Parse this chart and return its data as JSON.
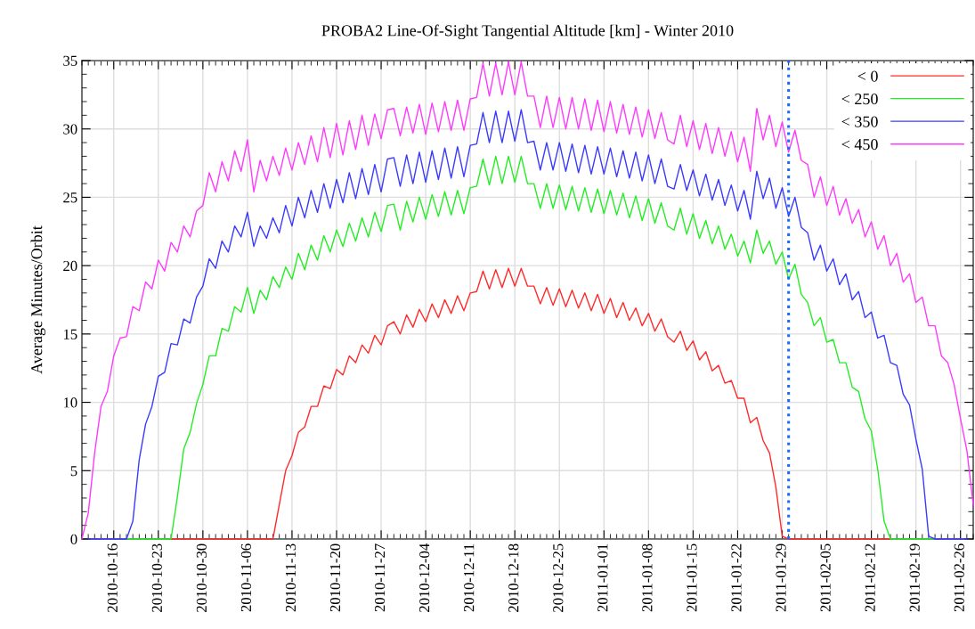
{
  "chart_data": {
    "type": "line",
    "title": "PROBA2 Line-Of-Sight Tangential Altitude [km] - Winter 2010",
    "ylabel": "Average Minutes/Orbit",
    "x": [
      "2010-10-11",
      "2010-10-12",
      "2010-10-13",
      "2010-10-14",
      "2010-10-15",
      "2010-10-16",
      "2010-10-17",
      "2010-10-18",
      "2010-10-19",
      "2010-10-20",
      "2010-10-21",
      "2010-10-22",
      "2010-10-23",
      "2010-10-24",
      "2010-10-25",
      "2010-10-26",
      "2010-10-27",
      "2010-10-28",
      "2010-10-29",
      "2010-10-30",
      "2010-10-31",
      "2010-11-01",
      "2010-11-02",
      "2010-11-03",
      "2010-11-04",
      "2010-11-05",
      "2010-11-06",
      "2010-11-07",
      "2010-11-08",
      "2010-11-09",
      "2010-11-10",
      "2010-11-11",
      "2010-11-12",
      "2010-11-13",
      "2010-11-14",
      "2010-11-15",
      "2010-11-16",
      "2010-11-17",
      "2010-11-18",
      "2010-11-19",
      "2010-11-20",
      "2010-11-21",
      "2010-11-22",
      "2010-11-23",
      "2010-11-24",
      "2010-11-25",
      "2010-11-26",
      "2010-11-27",
      "2010-11-28",
      "2010-11-29",
      "2010-11-30",
      "2010-12-01",
      "2010-12-02",
      "2010-12-03",
      "2010-12-04",
      "2010-12-05",
      "2010-12-06",
      "2010-12-07",
      "2010-12-08",
      "2010-12-09",
      "2010-12-10",
      "2010-12-11",
      "2010-12-12",
      "2010-12-13",
      "2010-12-14",
      "2010-12-15",
      "2010-12-16",
      "2010-12-17",
      "2010-12-18",
      "2010-12-19",
      "2010-12-20",
      "2010-12-21",
      "2010-12-22",
      "2010-12-23",
      "2010-12-24",
      "2010-12-25",
      "2010-12-26",
      "2010-12-27",
      "2010-12-28",
      "2010-12-29",
      "2010-12-30",
      "2010-12-31",
      "2011-01-01",
      "2011-01-02",
      "2011-01-03",
      "2011-01-04",
      "2011-01-05",
      "2011-01-06",
      "2011-01-07",
      "2011-01-08",
      "2011-01-09",
      "2011-01-10",
      "2011-01-11",
      "2011-01-12",
      "2011-01-13",
      "2011-01-14",
      "2011-01-15",
      "2011-01-16",
      "2011-01-17",
      "2011-01-18",
      "2011-01-19",
      "2011-01-20",
      "2011-01-21",
      "2011-01-22",
      "2011-01-23",
      "2011-01-24",
      "2011-01-25",
      "2011-01-26",
      "2011-01-27",
      "2011-01-28",
      "2011-01-29",
      "2011-01-30",
      "2011-01-31",
      "2011-02-01",
      "2011-02-02",
      "2011-02-03",
      "2011-02-04",
      "2011-02-05",
      "2011-02-06",
      "2011-02-07",
      "2011-02-08",
      "2011-02-09",
      "2011-02-10",
      "2011-02-11",
      "2011-02-12",
      "2011-02-13",
      "2011-02-14",
      "2011-02-15",
      "2011-02-16",
      "2011-02-17",
      "2011-02-18",
      "2011-02-19",
      "2011-02-20",
      "2011-02-21",
      "2011-02-22",
      "2011-02-23",
      "2011-02-24",
      "2011-02-25",
      "2011-02-26",
      "2011-02-27",
      "2011-02-28"
    ],
    "series": [
      {
        "name": "< 0",
        "color": "#ff2a2a",
        "values": [
          null,
          null,
          null,
          null,
          null,
          null,
          null,
          null,
          null,
          null,
          null,
          null,
          null,
          null,
          0,
          0,
          0,
          0,
          0,
          0,
          0,
          0,
          0,
          0,
          0,
          0,
          0,
          0,
          0,
          0,
          0,
          2.5,
          5.0,
          6.1,
          7.8,
          8.2,
          9.7,
          9.7,
          11.2,
          11.0,
          12.4,
          12.0,
          13.4,
          12.9,
          14.2,
          13.6,
          14.9,
          14.2,
          15.6,
          15.9,
          15.0,
          16.4,
          15.5,
          16.8,
          15.9,
          17.2,
          16.2,
          17.5,
          16.5,
          17.8,
          16.7,
          18.0,
          18.1,
          19.6,
          18.3,
          19.7,
          18.4,
          19.8,
          18.5,
          19.8,
          18.5,
          18.5,
          17.2,
          18.4,
          17.1,
          18.3,
          17.0,
          18.2,
          16.9,
          18.0,
          16.7,
          17.9,
          16.5,
          17.6,
          16.2,
          17.3,
          16.0,
          16.9,
          15.6,
          16.5,
          15.2,
          16.1,
          14.8,
          14.4,
          15.2,
          13.8,
          14.5,
          13.1,
          13.7,
          12.3,
          12.7,
          11.4,
          11.6,
          10.3,
          10.3,
          8.5,
          8.9,
          7.2,
          6.3,
          3.8,
          0.2,
          0,
          0,
          0,
          0,
          0,
          0,
          0,
          0,
          0,
          0,
          0,
          0,
          0,
          0,
          0,
          0,
          0,
          null,
          null,
          null,
          null,
          null,
          null,
          null,
          null,
          null,
          null,
          null,
          null,
          null
        ]
      },
      {
        "name": "< 250",
        "color": "#22ee22",
        "values": [
          null,
          null,
          null,
          null,
          null,
          null,
          null,
          0,
          0,
          0,
          0,
          0,
          0,
          0,
          0,
          3.1,
          6.6,
          7.8,
          9.9,
          11.3,
          13.4,
          13.4,
          15.4,
          15.2,
          17.0,
          16.6,
          18.4,
          16.5,
          18.2,
          17.5,
          19.2,
          18.4,
          19.9,
          19.0,
          20.9,
          19.7,
          21.5,
          20.4,
          22.2,
          21.0,
          22.6,
          21.4,
          23.1,
          21.8,
          23.5,
          22.1,
          23.9,
          22.5,
          24.4,
          24.5,
          22.6,
          24.7,
          23.2,
          25.0,
          23.4,
          25.2,
          23.6,
          25.4,
          23.7,
          25.5,
          23.8,
          25.7,
          25.8,
          27.8,
          25.9,
          28.0,
          26.0,
          28.0,
          26.1,
          28.0,
          26.0,
          26.0,
          24.2,
          26.0,
          24.2,
          25.9,
          24.1,
          25.8,
          24.0,
          25.7,
          23.9,
          25.6,
          23.8,
          25.5,
          23.7,
          25.3,
          23.5,
          25.1,
          23.3,
          24.9,
          23.1,
          24.6,
          22.9,
          22.6,
          24.2,
          22.3,
          23.8,
          22.0,
          23.3,
          21.6,
          22.9,
          21.2,
          22.3,
          20.7,
          21.8,
          20.2,
          22.6,
          20.9,
          21.8,
          20.1,
          21.0,
          19.0,
          20.1,
          17.9,
          17.3,
          15.6,
          16.2,
          14.4,
          14.6,
          12.9,
          12.9,
          11.1,
          10.8,
          8.8,
          7.9,
          5.1,
          1.3,
          0,
          0,
          0,
          0,
          0,
          0,
          0,
          0,
          null,
          null,
          null,
          null,
          null,
          null
        ]
      },
      {
        "name": "< 350",
        "color": "#3a3aff",
        "values": [
          null,
          0,
          0,
          0,
          0,
          0,
          0,
          0,
          1.3,
          5.8,
          8.4,
          9.7,
          11.9,
          12.2,
          14.3,
          14.2,
          16.1,
          15.8,
          17.7,
          18.5,
          20.5,
          19.8,
          21.8,
          21.0,
          22.9,
          22.1,
          23.9,
          21.4,
          22.9,
          22.0,
          23.5,
          22.4,
          24.4,
          22.9,
          25.0,
          23.5,
          25.5,
          23.9,
          26.0,
          24.2,
          26.3,
          24.6,
          26.8,
          24.9,
          27.1,
          25.2,
          27.4,
          25.4,
          27.8,
          27.9,
          25.8,
          28.1,
          26.0,
          28.3,
          26.1,
          28.4,
          26.3,
          28.6,
          26.4,
          28.7,
          26.5,
          28.8,
          28.9,
          31.2,
          29.0,
          31.3,
          29.0,
          31.3,
          29.1,
          31.4,
          29.0,
          29.1,
          27.0,
          29.0,
          27.0,
          29.0,
          26.9,
          28.9,
          26.8,
          28.8,
          26.7,
          28.7,
          26.7,
          28.6,
          26.5,
          28.4,
          26.4,
          28.3,
          26.2,
          28.1,
          26.0,
          27.8,
          25.8,
          25.6,
          27.4,
          25.5,
          27.0,
          25.1,
          26.7,
          24.8,
          26.3,
          24.4,
          25.9,
          24.0,
          25.5,
          23.4,
          26.9,
          24.9,
          26.4,
          24.2,
          25.7,
          23.6,
          25.0,
          22.8,
          22.4,
          20.4,
          21.5,
          19.6,
          20.5,
          18.6,
          19.4,
          17.5,
          18.1,
          16.2,
          16.6,
          14.7,
          14.9,
          12.9,
          12.7,
          10.6,
          9.8,
          7.3,
          5.1,
          0.2,
          0,
          0,
          0,
          0,
          0,
          0,
          null
        ]
      },
      {
        "name": "< 450",
        "color": "#ff3aff",
        "values": [
          0,
          1.9,
          6.3,
          9.7,
          10.8,
          13.4,
          14.7,
          14.8,
          17.0,
          16.7,
          18.8,
          18.3,
          20.4,
          19.6,
          21.7,
          21.0,
          22.9,
          22.1,
          24.0,
          24.4,
          26.8,
          25.4,
          27.6,
          26.2,
          28.4,
          26.9,
          29.2,
          25.4,
          27.7,
          26.2,
          28.0,
          26.6,
          28.6,
          27.0,
          29.0,
          27.4,
          29.5,
          27.6,
          30.1,
          27.9,
          30.4,
          28.1,
          30.6,
          28.5,
          31.0,
          28.8,
          31.1,
          29.3,
          31.4,
          31.5,
          29.5,
          31.6,
          29.7,
          31.8,
          29.6,
          31.9,
          29.8,
          32.0,
          29.9,
          32.1,
          29.9,
          32.2,
          32.3,
          34.8,
          32.4,
          34.8,
          32.5,
          34.9,
          32.5,
          34.9,
          32.4,
          32.4,
          30.1,
          32.4,
          30.1,
          32.3,
          30.0,
          32.3,
          30.0,
          32.2,
          29.9,
          32.1,
          29.8,
          32.0,
          29.7,
          31.8,
          29.6,
          31.6,
          29.4,
          31.4,
          29.3,
          31.2,
          29.2,
          28.9,
          31.0,
          28.7,
          30.6,
          28.5,
          30.4,
          28.2,
          30.1,
          28.0,
          29.8,
          27.6,
          29.4,
          26.9,
          31.5,
          29.2,
          31.0,
          28.7,
          30.5,
          28.3,
          29.9,
          27.7,
          27.4,
          25.0,
          26.5,
          24.4,
          25.8,
          23.7,
          24.9,
          23.1,
          24.1,
          22.1,
          23.2,
          21.2,
          22.2,
          20.0,
          20.9,
          18.8,
          19.4,
          17.3,
          17.7,
          15.6,
          15.6,
          13.4,
          12.9,
          11.3,
          8.8,
          6.5,
          2.5
        ]
      }
    ],
    "xlim": [
      "2010-10-11",
      "2011-02-28"
    ],
    "xticks": [
      "2010-10-16",
      "2010-10-23",
      "2010-10-30",
      "2010-11-06",
      "2010-11-13",
      "2010-11-20",
      "2010-11-27",
      "2010-12-04",
      "2010-12-11",
      "2010-12-18",
      "2010-12-25",
      "2011-01-01",
      "2011-01-08",
      "2011-01-15",
      "2011-01-22",
      "2011-01-29",
      "2011-02-05",
      "2011-02-12",
      "2011-02-19",
      "2011-02-26"
    ],
    "ylim": [
      0,
      35
    ],
    "yticks": [
      0,
      5,
      10,
      15,
      20,
      25,
      30,
      35
    ],
    "ref_lines": [
      {
        "axis": "x",
        "value": "2011-01-30",
        "color": "#1a6cff",
        "line_style": "dotted"
      }
    ],
    "grid": true,
    "legend": "top right",
    "marker": "none",
    "line_style": "solid"
  }
}
